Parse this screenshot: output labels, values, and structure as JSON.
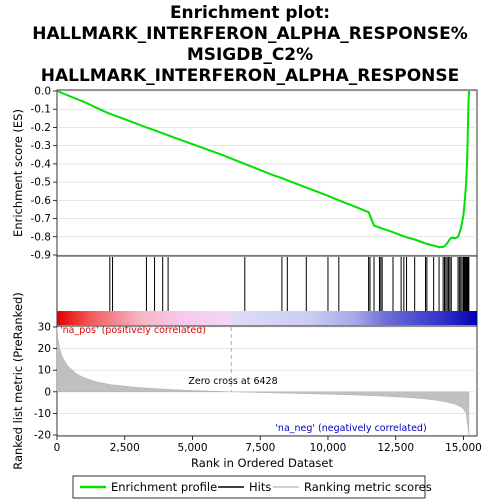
{
  "title_lines": [
    "Enrichment plot:",
    "HALLMARK_INTERFERON_ALPHA_RESPONSE%",
    "MSIGDB_C2%",
    "HALLMARK_INTERFERON_ALPHA_RESPONSE"
  ],
  "chart_data": [
    {
      "type": "line",
      "panel": "enrichment-profile",
      "ylabel": "Enrichment score (ES)",
      "ylim": [
        -0.9,
        0.0
      ],
      "yticks": [
        "0.0",
        "-0.1",
        "-0.2",
        "-0.3",
        "-0.4",
        "-0.5",
        "-0.6",
        "-0.7",
        "-0.8",
        "-0.9"
      ],
      "ytick_values": [
        0.0,
        -0.1,
        -0.2,
        -0.3,
        -0.4,
        -0.5,
        -0.6,
        -0.7,
        -0.8,
        -0.9
      ],
      "xlim": [
        0,
        15500
      ],
      "grid": true,
      "series": [
        {
          "name": "Enrichment profile",
          "color": "#00e000",
          "x": [
            0,
            500,
            1000,
            1500,
            1950,
            2050,
            2500,
            3300,
            3600,
            3900,
            4100,
            5000,
            6000,
            6930,
            8000,
            8300,
            8500,
            9200,
            10000,
            10400,
            11000,
            11500,
            11700,
            11950,
            12000,
            12400,
            12700,
            12850,
            12950,
            13200,
            13600,
            13800,
            14000,
            14100,
            14250,
            14300,
            14400,
            14450,
            14500,
            14550,
            14700,
            14800,
            14900,
            14950,
            15000,
            15050,
            15100,
            15130,
            15150,
            15170,
            15190,
            15210
          ],
          "y": [
            0.0,
            -0.03,
            -0.06,
            -0.095,
            -0.125,
            -0.13,
            -0.155,
            -0.2,
            -0.215,
            -0.232,
            -0.243,
            -0.292,
            -0.345,
            -0.4,
            -0.463,
            -0.478,
            -0.49,
            -0.53,
            -0.575,
            -0.6,
            -0.635,
            -0.665,
            -0.738,
            -0.752,
            -0.755,
            -0.775,
            -0.792,
            -0.8,
            -0.805,
            -0.815,
            -0.837,
            -0.845,
            -0.852,
            -0.858,
            -0.855,
            -0.852,
            -0.835,
            -0.825,
            -0.812,
            -0.805,
            -0.808,
            -0.8,
            -0.76,
            -0.72,
            -0.68,
            -0.6,
            -0.5,
            -0.4,
            -0.3,
            -0.15,
            -0.05,
            0.0
          ]
        }
      ]
    },
    {
      "type": "scatter",
      "panel": "hits",
      "series": [
        {
          "name": "Hits",
          "color": "#000000",
          "x": [
            1950,
            2050,
            3300,
            3600,
            3900,
            4100,
            6930,
            8300,
            8500,
            9200,
            10000,
            10400,
            11500,
            11550,
            11700,
            11900,
            11950,
            12000,
            12400,
            12700,
            12800,
            12900,
            13200,
            13600,
            13650,
            13900,
            14100,
            14250,
            14300,
            14350,
            14400,
            14450,
            14500,
            14550,
            14800,
            14850,
            14900,
            14950,
            15000,
            15020,
            15050,
            15080,
            15100,
            15120,
            15140,
            15160,
            15180,
            15200
          ]
        }
      ]
    },
    {
      "type": "area",
      "panel": "ranked-list-metric",
      "ylabel": "Ranked list metric (PreRanked)",
      "xlabel": "Rank in Ordered Dataset",
      "ylim": [
        -20,
        30
      ],
      "yticks": [
        "30",
        "20",
        "10",
        "0",
        "-10",
        "-20"
      ],
      "ytick_values": [
        30,
        20,
        10,
        0,
        -10,
        -20
      ],
      "xlim": [
        0,
        15500
      ],
      "xticks": [
        "0",
        "2,500",
        "5,000",
        "7,500",
        "10,000",
        "12,500",
        "15,000"
      ],
      "xtick_values": [
        0,
        2500,
        5000,
        7500,
        10000,
        12500,
        15000
      ],
      "series": [
        {
          "name": "Ranking metric scores",
          "color": "#c0c0c0",
          "x": [
            0,
            30,
            100,
            200,
            400,
            700,
            1000,
            1500,
            2000,
            3000,
            4000,
            5000,
            6000,
            6428,
            7000,
            8000,
            9000,
            10000,
            11000,
            12000,
            13000,
            13500,
            14000,
            14400,
            14700,
            14900,
            15000,
            15100,
            15150,
            15200
          ],
          "y": [
            30,
            25,
            20,
            16,
            12,
            8.5,
            6.5,
            4.5,
            3.3,
            2.0,
            1.2,
            0.6,
            0.2,
            0.0,
            -0.2,
            -0.5,
            -0.8,
            -1.1,
            -1.5,
            -2.0,
            -2.7,
            -3.2,
            -3.9,
            -4.8,
            -5.8,
            -7.0,
            -8.0,
            -10.0,
            -15.0,
            -20.0
          ]
        }
      ],
      "annotations": {
        "positive": "'na_pos' (positively correlated)",
        "zero_cross": "Zero cross at 6428",
        "negative": "'na_neg' (negatively correlated)",
        "zero_cross_rank": 6428
      },
      "colors": {
        "positive": "#e00000",
        "negative": "#0000c0"
      }
    }
  ],
  "legend": {
    "items": [
      {
        "label": "Enrichment profile",
        "color": "#00e000"
      },
      {
        "label": "Hits",
        "color": "#000000"
      },
      {
        "label": "Ranking metric scores",
        "color": "#c0c0c0"
      }
    ]
  }
}
